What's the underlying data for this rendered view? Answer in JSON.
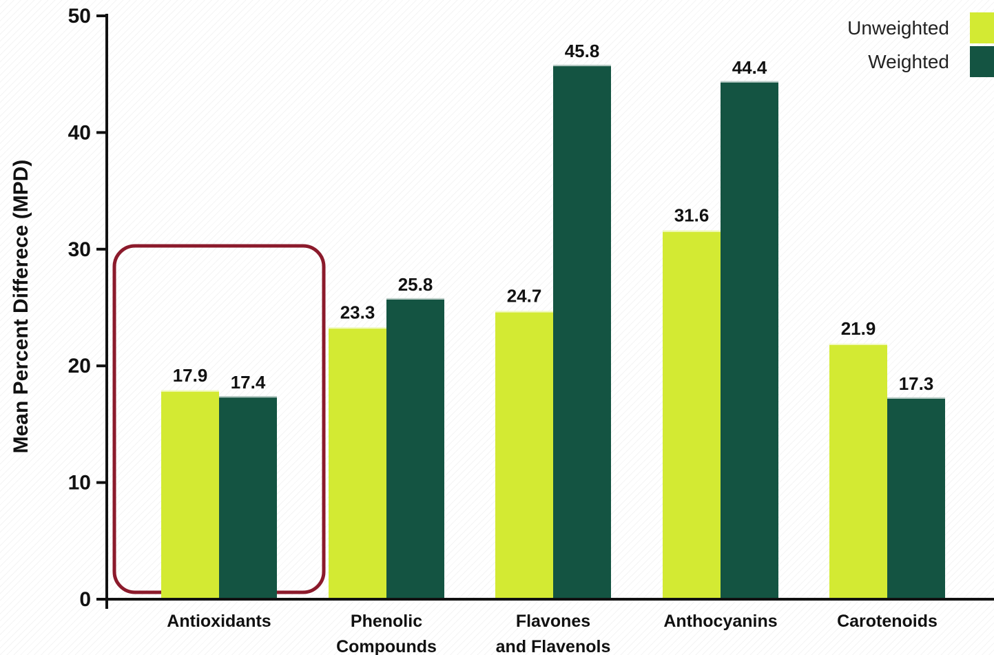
{
  "chart_data": {
    "type": "bar",
    "categories": [
      [
        "Antioxidants"
      ],
      [
        "Phenolic",
        "Compounds"
      ],
      [
        "Flavones",
        "and Flavenols"
      ],
      [
        "Anthocyanins"
      ],
      [
        "Carotenoids"
      ]
    ],
    "series": [
      {
        "name": "Unweighted",
        "color": "#d3ea33",
        "values": [
          17.9,
          23.3,
          24.7,
          31.6,
          21.9
        ]
      },
      {
        "name": "Weighted",
        "color": "#145442",
        "values": [
          17.4,
          25.8,
          45.8,
          44.4,
          17.3
        ]
      }
    ],
    "ylabel": "Mean Percent Differece (MPD)",
    "ylim": [
      0,
      50
    ],
    "yticks": [
      0,
      10,
      20,
      30,
      40,
      50
    ],
    "legend_position": "top-right",
    "grid": false,
    "highlight": {
      "category_index": 0,
      "color": "#8b1a2b"
    }
  }
}
